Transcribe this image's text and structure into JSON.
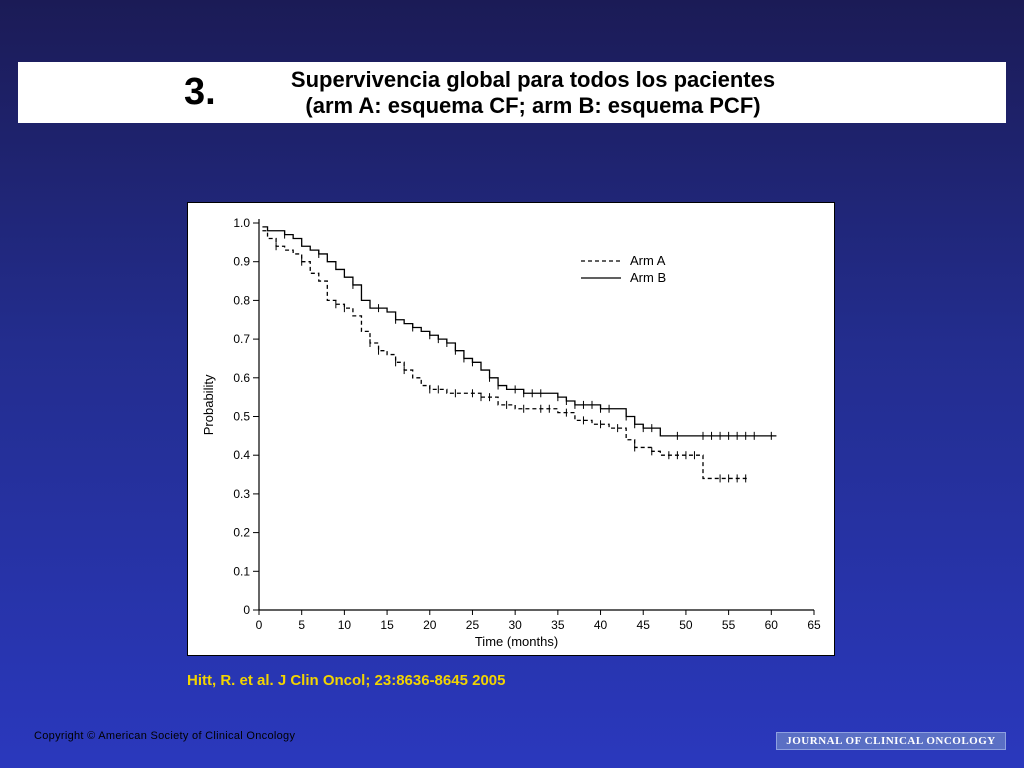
{
  "slide": {
    "number": "3.",
    "title_line1": "Supervivencia global para todos los pacientes",
    "title_line2": "(arm A: esquema CF; arm B: esquema PCF)"
  },
  "citation": "Hitt, R. et al. J Clin Oncol; 23:8636-8645 2005",
  "footer": {
    "copyright": "Copyright © American Society of Clinical Oncology",
    "journal_logo": "JOURNAL OF CLINICAL ONCOLOGY"
  },
  "chart_data": {
    "type": "line",
    "title": "",
    "xlabel": "Time (months)",
    "ylabel": "Probability",
    "xlim": [
      0,
      65
    ],
    "ylim": [
      0,
      1.0
    ],
    "xticks": [
      0,
      5,
      10,
      15,
      20,
      25,
      30,
      35,
      40,
      45,
      50,
      55,
      60,
      65
    ],
    "yticks": [
      0,
      0.1,
      0.2,
      0.3,
      0.4,
      0.5,
      0.6,
      0.7,
      0.8,
      0.9,
      1.0
    ],
    "ytick_labels": [
      "0",
      "0.1",
      "0.2",
      "0.3",
      "0.4",
      "0.5",
      "0.6",
      "0.7",
      "0.8",
      "0.9",
      "1.0"
    ],
    "grid": false,
    "legend_position": "top-right",
    "step": true,
    "series": [
      {
        "name": "Arm A",
        "style": "dashed",
        "x": [
          0.4,
          1,
          2,
          3,
          4,
          5,
          6,
          7,
          8,
          9,
          10,
          11,
          12,
          13,
          14,
          15,
          16,
          17,
          18,
          19,
          20,
          21,
          22,
          24,
          26,
          28,
          30,
          32,
          34,
          35,
          37,
          39,
          41,
          43,
          44,
          46,
          47,
          50,
          52,
          55,
          57.4
        ],
        "y": [
          0.98,
          0.96,
          0.94,
          0.93,
          0.92,
          0.9,
          0.87,
          0.85,
          0.8,
          0.79,
          0.78,
          0.76,
          0.72,
          0.69,
          0.67,
          0.66,
          0.64,
          0.62,
          0.6,
          0.58,
          0.57,
          0.57,
          0.56,
          0.56,
          0.55,
          0.53,
          0.52,
          0.52,
          0.52,
          0.51,
          0.49,
          0.48,
          0.47,
          0.44,
          0.42,
          0.41,
          0.4,
          0.4,
          0.34,
          0.34,
          0.34
        ],
        "censor_x": [
          2,
          5,
          9,
          10,
          13,
          14,
          16,
          17,
          20,
          21,
          23,
          25,
          26,
          27,
          29,
          31,
          33,
          34,
          36,
          38,
          40,
          42,
          44,
          46,
          48,
          49,
          50,
          51,
          54,
          55,
          56,
          57
        ]
      },
      {
        "name": "Arm B",
        "style": "solid",
        "x": [
          0.4,
          1,
          2,
          3,
          4,
          5,
          6,
          7,
          8,
          9,
          10,
          11,
          12,
          13,
          14,
          15,
          16,
          17,
          18,
          19,
          20,
          21,
          22,
          23,
          24,
          25,
          26,
          27,
          28,
          29,
          30,
          31,
          32,
          34,
          35,
          36,
          37,
          38,
          40,
          42,
          43,
          44,
          45,
          47,
          48,
          50,
          55,
          60.6
        ],
        "y": [
          0.99,
          0.98,
          0.98,
          0.97,
          0.96,
          0.94,
          0.93,
          0.92,
          0.9,
          0.88,
          0.86,
          0.84,
          0.8,
          0.78,
          0.78,
          0.77,
          0.75,
          0.74,
          0.73,
          0.72,
          0.71,
          0.7,
          0.69,
          0.67,
          0.65,
          0.64,
          0.62,
          0.6,
          0.58,
          0.57,
          0.57,
          0.56,
          0.56,
          0.56,
          0.55,
          0.54,
          0.53,
          0.53,
          0.52,
          0.52,
          0.5,
          0.48,
          0.47,
          0.45,
          0.45,
          0.45,
          0.45,
          0.45
        ],
        "censor_x": [
          3,
          7,
          11,
          14,
          16,
          18,
          20,
          21,
          22,
          23,
          24,
          25,
          27,
          28,
          30,
          31,
          32,
          33,
          35,
          36,
          37,
          38,
          39,
          40,
          41,
          43,
          44,
          45,
          46,
          49,
          52,
          53,
          54,
          55,
          56,
          57,
          58,
          60
        ]
      }
    ]
  }
}
